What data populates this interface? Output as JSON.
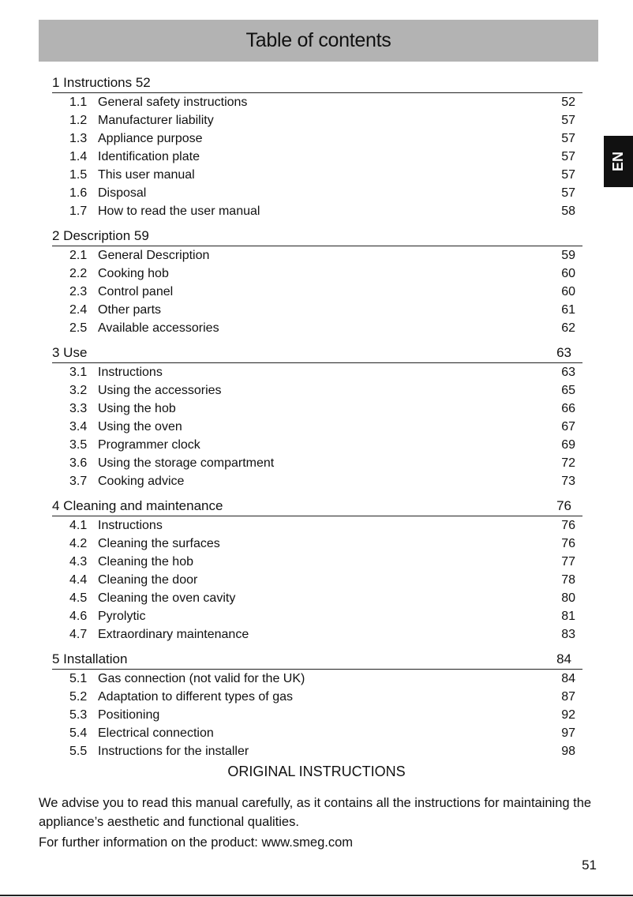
{
  "header": {
    "title": "Table of contents"
  },
  "lang_tab": "EN",
  "sections": [
    {
      "title": "1 Instructions 52",
      "page": "",
      "items": [
        {
          "num": "1.1",
          "title": "General safety instructions",
          "page": "52"
        },
        {
          "num": "1.2",
          "title": "Manufacturer liability",
          "page": "57"
        },
        {
          "num": "1.3",
          "title": "Appliance purpose",
          "page": "57"
        },
        {
          "num": "1.4",
          "title": "Identification plate",
          "page": "57"
        },
        {
          "num": "1.5",
          "title": "This user manual",
          "page": "57"
        },
        {
          "num": "1.6",
          "title": "Disposal",
          "page": "57"
        },
        {
          "num": "1.7",
          "title": "How to read the user manual",
          "page": "58"
        }
      ]
    },
    {
      "title": "2 Description 59",
      "page": "",
      "items": [
        {
          "num": "2.1",
          "title": "General Description",
          "page": "59"
        },
        {
          "num": "2.2",
          "title": "Cooking hob",
          "page": "60"
        },
        {
          "num": "2.3",
          "title": "Control panel",
          "page": "60"
        },
        {
          "num": "2.4",
          "title": "Other parts",
          "page": "61"
        },
        {
          "num": "2.5",
          "title": "Available accessories",
          "page": "62"
        }
      ]
    },
    {
      "title": "3 Use",
      "page": "63",
      "items": [
        {
          "num": "3.1",
          "title": "Instructions",
          "page": "63"
        },
        {
          "num": "3.2",
          "title": "Using the accessories",
          "page": "65"
        },
        {
          "num": "3.3",
          "title": "Using the hob",
          "page": "66"
        },
        {
          "num": "3.4",
          "title": "Using the oven",
          "page": "67"
        },
        {
          "num": "3.5",
          "title": "Programmer clock",
          "page": "69"
        },
        {
          "num": "3.6",
          "title": "Using the storage compartment",
          "page": "72"
        },
        {
          "num": "3.7",
          "title": "Cooking advice",
          "page": "73"
        }
      ]
    },
    {
      "title": "4 Cleaning and maintenance",
      "page": "76",
      "items": [
        {
          "num": "4.1",
          "title": "Instructions",
          "page": "76"
        },
        {
          "num": "4.2",
          "title": "Cleaning the surfaces",
          "page": "76"
        },
        {
          "num": "4.3",
          "title": "Cleaning the hob",
          "page": "77"
        },
        {
          "num": "4.4",
          "title": "Cleaning the door",
          "page": "78"
        },
        {
          "num": "4.5",
          "title": "Cleaning the oven cavity",
          "page": "80"
        },
        {
          "num": "4.6",
          "title": "Pyrolytic",
          "page": "81"
        },
        {
          "num": "4.7",
          "title": "Extraordinary maintenance",
          "page": "83"
        }
      ]
    },
    {
      "title": "5 Installation",
      "page": "84",
      "items": [
        {
          "num": "5.1",
          "title": "Gas connection (not valid for the UK)",
          "page": "84"
        },
        {
          "num": "5.2",
          "title": "Adaptation to different types of gas",
          "page": "87"
        },
        {
          "num": "5.3",
          "title": "Positioning",
          "page": "92"
        },
        {
          "num": "5.4",
          "title": "Electrical connection",
          "page": "97"
        },
        {
          "num": "5.5",
          "title": "Instructions for the installer",
          "page": "98"
        }
      ]
    }
  ],
  "original_instructions": "ORIGINAL INSTRUCTIONS",
  "intro": "We advise you to read this manual carefully, as it contains all the instructions for maintaining the appliance’s aesthetic and functional qualities.",
  "further_info": "For further information on the product: www.smeg.com",
  "page_number": "51"
}
